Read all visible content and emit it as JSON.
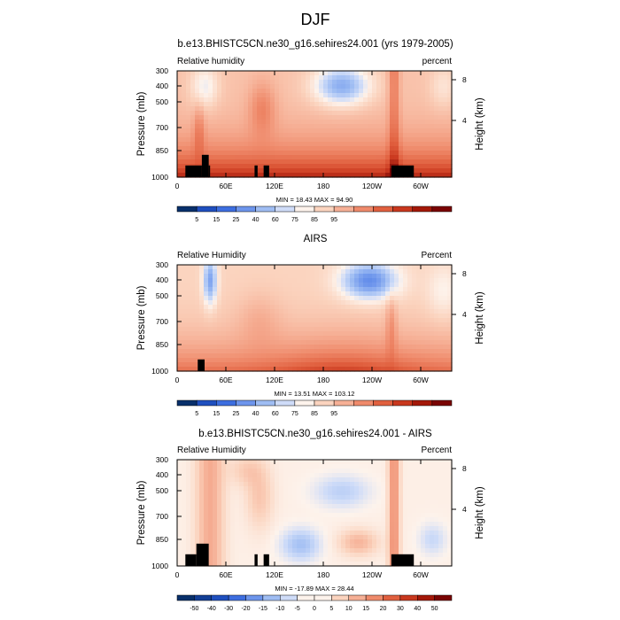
{
  "figure": {
    "title": "DJF"
  },
  "chart_data": [
    {
      "type": "heatmap",
      "title": "b.e13.BHISTC5CN.ne30_g16.sehires24.001 (yrs 1979-2005)",
      "left_label": "Relative humidity",
      "right_label": "percent",
      "ylabel": "Pressure (mb)",
      "ylabel_right": "Height (km)",
      "x_ticks": [
        "0",
        "60E",
        "120E",
        "180",
        "120W",
        "60W"
      ],
      "y_ticks": [
        "300",
        "400",
        "500",
        "700",
        "850",
        "1000"
      ],
      "y_ticks_right": [
        "8",
        "4"
      ],
      "stats": "MIN = 18.43 MAX = 94.90",
      "colorbar": {
        "labels": [
          "5",
          "15",
          "25",
          "40",
          "60",
          "75",
          "85",
          "95"
        ],
        "colors": [
          "#08306b",
          "#1f4fbf",
          "#3d6ee0",
          "#6d95ec",
          "#9fbdf3",
          "#cfdcf8",
          "#fdf3ec",
          "#fbd4bf",
          "#f6b096",
          "#ef8a6b",
          "#e1603f",
          "#c9381e",
          "#a41809",
          "#7a0403"
        ]
      }
    },
    {
      "type": "heatmap",
      "title": "AIRS",
      "left_label": "Relative Humidity",
      "right_label": "Percent",
      "ylabel": "Pressure (mb)",
      "ylabel_right": "Height (km)",
      "x_ticks": [
        "0",
        "60E",
        "120E",
        "180",
        "120W",
        "60W"
      ],
      "y_ticks": [
        "300",
        "400",
        "500",
        "700",
        "850",
        "1000"
      ],
      "y_ticks_right": [
        "8",
        "4"
      ],
      "stats": "MIN = 13.51 MAX = 103.12",
      "colorbar": {
        "labels": [
          "5",
          "15",
          "25",
          "40",
          "60",
          "75",
          "85",
          "95"
        ],
        "colors": [
          "#08306b",
          "#1f4fbf",
          "#3d6ee0",
          "#6d95ec",
          "#9fbdf3",
          "#cfdcf8",
          "#fdf3ec",
          "#fbd4bf",
          "#f6b096",
          "#ef8a6b",
          "#e1603f",
          "#c9381e",
          "#a41809",
          "#7a0403"
        ]
      }
    },
    {
      "type": "heatmap",
      "title": "b.e13.BHISTC5CN.ne30_g16.sehires24.001 - AIRS",
      "left_label": "Relative Humidity",
      "right_label": "Percent",
      "ylabel": "Pressure (mb)",
      "ylabel_right": "Height (km)",
      "x_ticks": [
        "0",
        "60E",
        "120E",
        "180",
        "120W",
        "60W"
      ],
      "y_ticks": [
        "300",
        "400",
        "500",
        "700",
        "850",
        "1000"
      ],
      "y_ticks_right": [
        "8",
        "4"
      ],
      "stats": "MIN = -17.89 MAX = 28.44",
      "colorbar": {
        "labels": [
          "-50",
          "-40",
          "-30",
          "-20",
          "-15",
          "-10",
          "-5",
          "0",
          "5",
          "10",
          "15",
          "20",
          "30",
          "40",
          "50"
        ],
        "colors": [
          "#08306b",
          "#123e96",
          "#1f4fbf",
          "#3d6ee0",
          "#6d95ec",
          "#9fbdf3",
          "#cfdcf8",
          "#fdf3ec",
          "#fdf3ec",
          "#fbd4bf",
          "#f6b096",
          "#ef8a6b",
          "#e1603f",
          "#c9381e",
          "#a41809",
          "#7a0403"
        ]
      }
    }
  ]
}
